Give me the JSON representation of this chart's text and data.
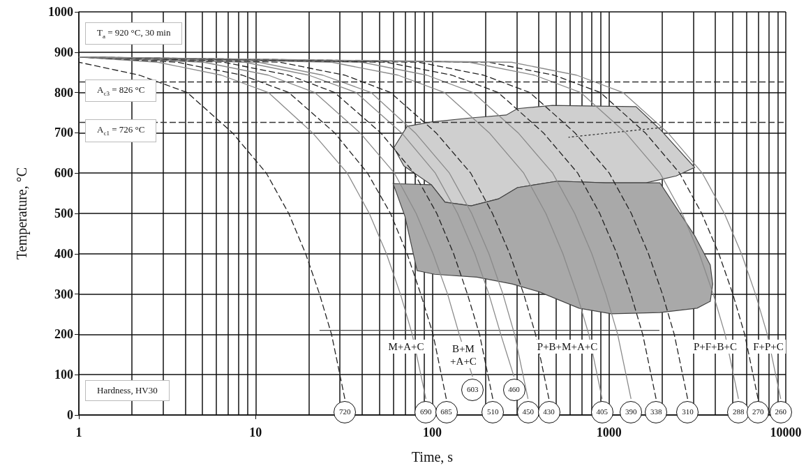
{
  "chart_data": {
    "type": "line",
    "xlabel": "Time, s",
    "ylabel": "Temperature, °C",
    "log": "x",
    "grid": true,
    "xlim": [
      1,
      10000
    ],
    "xticks": [
      1,
      10,
      100,
      1000,
      10000
    ],
    "ylim": [
      0,
      1000
    ],
    "yticks": [
      0,
      100,
      200,
      300,
      400,
      500,
      600,
      700,
      800,
      900,
      1000
    ],
    "series": [
      {
        "type": "area",
        "color": "#cfcfcf",
        "x": [
          60.6,
          72,
          98.7,
          166,
          262,
          303,
          478,
          1367,
          1420,
          1940,
          3050,
          2400,
          1620,
          960,
          510,
          303,
          237,
          166,
          118,
          98.7,
          69
        ],
        "values": [
          663,
          716,
          727,
          737,
          744,
          760,
          768,
          765,
          765,
          709,
          614,
          593,
          576,
          576,
          580,
          564,
          536,
          519,
          528,
          571,
          618
        ]
      },
      {
        "type": "area",
        "color": "#a9a9a9",
        "x": [
          60,
          98.7,
          118,
          166,
          237,
          303,
          510,
          960,
          1620,
          1940,
          3050,
          3740,
          3860,
          3740,
          3150,
          1940,
          1030,
          676,
          400,
          283,
          179,
          103,
          82,
          70
        ],
        "values": [
          574,
          571,
          528,
          519,
          536,
          564,
          580,
          576,
          576,
          576,
          445,
          372,
          325,
          282,
          265,
          254,
          251,
          265,
          306,
          325,
          342,
          349,
          358,
          493
        ]
      },
      {
        "color": "#4a4a4a",
        "x": [
          23,
          1928
        ],
        "values": [
          210,
          210
        ]
      },
      {
        "color": "#333333",
        "line_style": "dotted",
        "x": [
          590,
          1980
        ],
        "values": [
          689,
          713
        ]
      },
      {
        "color": "#222222",
        "line_style": "dashed",
        "x": [
          1,
          2.2,
          4.1,
          7.4,
          11.5,
          15.4,
          19.2,
          23,
          26.9,
          32
        ],
        "values": [
          875,
          843,
          800,
          700,
          600,
          500,
          400,
          300,
          200,
          40
        ]
      },
      {
        "color": "#8a8a8a",
        "x": [
          1,
          2.8,
          6.4,
          11.8,
          21,
          33,
          44,
          55,
          66,
          77,
          92
        ],
        "values": [
          888,
          875,
          843,
          800,
          700,
          600,
          500,
          400,
          300,
          200,
          40
        ]
      },
      {
        "color": "#222222",
        "line_style": "dashed",
        "x": [
          1,
          3.6,
          8.4,
          15.4,
          28,
          43,
          58,
          72,
          86,
          101,
          120
        ],
        "values": [
          888,
          875,
          843,
          800,
          700,
          600,
          500,
          400,
          300,
          200,
          40
        ]
      },
      {
        "color": "#8a8a8a",
        "x": [
          1,
          5.1,
          11.8,
          21.6,
          39,
          61,
          81,
          101,
          122,
          142,
          169
        ],
        "values": [
          888,
          875,
          843,
          800,
          700,
          600,
          500,
          400,
          300,
          200,
          95
        ]
      },
      {
        "color": "#222222",
        "line_style": "dashed",
        "x": [
          1,
          6.6,
          15.4,
          28,
          51,
          79,
          106,
          132,
          158,
          185,
          220
        ],
        "values": [
          888,
          875,
          843,
          800,
          700,
          600,
          500,
          400,
          300,
          200,
          40
        ]
      },
      {
        "color": "#8a8a8a",
        "x": [
          1,
          8.7,
          20,
          37,
          67,
          104,
          139,
          174,
          209,
          244,
          290
        ],
        "values": [
          888,
          875,
          843,
          800,
          700,
          600,
          500,
          400,
          300,
          200,
          95
        ]
      },
      {
        "color": "#8a8a8a",
        "x": [
          1,
          10.4,
          24,
          45,
          80,
          125,
          167,
          209,
          251,
          292,
          348
        ],
        "values": [
          888,
          875,
          843,
          800,
          700,
          600,
          500,
          400,
          300,
          200,
          40
        ]
      },
      {
        "color": "#222222",
        "line_style": "dashed",
        "x": [
          1,
          13.7,
          32,
          58,
          105,
          165,
          219,
          274,
          329,
          384,
          457
        ],
        "values": [
          888,
          875,
          843,
          800,
          700,
          600,
          500,
          400,
          300,
          200,
          40
        ]
      },
      {
        "color": "#8a8a8a",
        "x": [
          1,
          27,
          64,
          117,
          210,
          329,
          439,
          548,
          658,
          768,
          914
        ],
        "values": [
          888,
          875,
          843,
          800,
          700,
          600,
          500,
          400,
          300,
          200,
          40
        ]
      },
      {
        "color": "#8a8a8a",
        "x": [
          1,
          40,
          93,
          170,
          306,
          480,
          639,
          799,
          959,
          1119,
          1332
        ],
        "values": [
          888,
          875,
          843,
          800,
          700,
          600,
          500,
          400,
          300,
          200,
          40
        ]
      },
      {
        "color": "#222222",
        "line_style": "dashed",
        "x": [
          1,
          55,
          129,
          236,
          425,
          665,
          886,
          1108,
          1329,
          1551,
          1846
        ],
        "values": [
          888,
          875,
          843,
          800,
          700,
          600,
          500,
          400,
          300,
          200,
          40
        ]
      },
      {
        "color": "#222222",
        "line_style": "dashed",
        "x": [
          1,
          84,
          195,
          356,
          641,
          1003,
          1337,
          1671,
          2005,
          2339,
          2785
        ],
        "values": [
          888,
          875,
          843,
          800,
          700,
          600,
          500,
          400,
          300,
          200,
          40
        ]
      },
      {
        "color": "#8a8a8a",
        "x": [
          1,
          162,
          378,
          691,
          1242,
          1944,
          2592,
          3240,
          3888,
          4536,
          5400
        ],
        "values": [
          888,
          875,
          843,
          800,
          700,
          600,
          500,
          400,
          300,
          200,
          40
        ]
      },
      {
        "color": "#222222",
        "line_style": "dashed",
        "x": [
          1,
          209,
          488,
          892,
          1603,
          2509,
          3346,
          4182,
          5018,
          5855,
          6970
        ],
        "values": [
          888,
          875,
          843,
          800,
          700,
          600,
          500,
          400,
          300,
          200,
          40
        ]
      },
      {
        "color": "#8a8a8a",
        "x": [
          1,
          281,
          655,
          1198,
          2153,
          3370,
          4493,
          5616,
          6739,
          7862,
          9360
        ],
        "values": [
          888,
          875,
          843,
          800,
          700,
          600,
          500,
          400,
          300,
          200,
          40
        ]
      }
    ],
    "ref_lines": [
      {
        "axis": "y",
        "value": 826,
        "label": "A$_{c3}$ = 826 °C",
        "line_style": "dashed",
        "color": "#333333"
      },
      {
        "axis": "y",
        "value": 726,
        "label": "A$_{c1}$ = 726 °C",
        "line_style": "dashed",
        "color": "#333333"
      }
    ],
    "annotations": [
      "T$_{a}$ = 920 °C, 30 min",
      "Hardness, HV30",
      "M+A+C",
      "B+M\n+A+C",
      "P+B+M+A+C",
      "P+F+B+C",
      "F+P+C",
      {
        "text": "720",
        "x": 32,
        "y": 40
      },
      {
        "text": "690",
        "x": 92,
        "y": 40
      },
      {
        "text": "685",
        "x": 120,
        "y": 40
      },
      {
        "text": "603",
        "x": 169,
        "y": 95
      },
      {
        "text": "510",
        "x": 220,
        "y": 40
      },
      {
        "text": "460",
        "x": 290,
        "y": 95
      },
      {
        "text": "450",
        "x": 348,
        "y": 40
      },
      {
        "text": "430",
        "x": 457,
        "y": 40
      },
      {
        "text": "405",
        "x": 914,
        "y": 40
      },
      {
        "text": "390",
        "x": 1332,
        "y": 40
      },
      {
        "text": "338",
        "x": 1846,
        "y": 40
      },
      {
        "text": "310",
        "x": 2785,
        "y": 40
      },
      {
        "text": "288",
        "x": 5400,
        "y": 40
      },
      {
        "text": "270",
        "x": 6970,
        "y": 40
      },
      {
        "text": "260",
        "x": 9360,
        "y": 40
      }
    ]
  }
}
